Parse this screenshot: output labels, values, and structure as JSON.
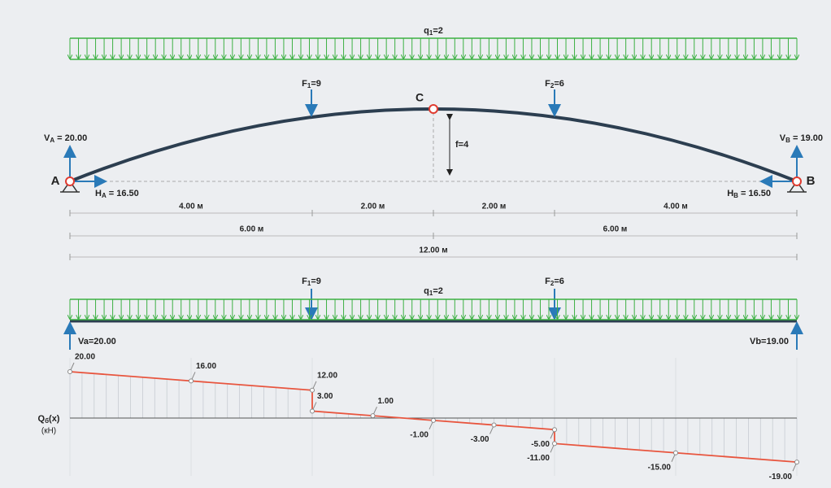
{
  "top_load": {
    "name": "q",
    "sub": "1",
    "text": "=2"
  },
  "arch": {
    "crown": "C",
    "rise": "f=4",
    "forces": [
      {
        "name": "F",
        "sub": "1",
        "text": "=9"
      },
      {
        "name": "F",
        "sub": "2",
        "text": "=6"
      }
    ],
    "supports": [
      "A",
      "B"
    ],
    "reactions": [
      {
        "name": "V",
        "sub": "A",
        "text": " = 20.00"
      },
      {
        "name": "H",
        "sub": "A",
        "text": " = 16.50"
      },
      {
        "name": "V",
        "sub": "B",
        "text": " = 19.00"
      },
      {
        "name": "H",
        "sub": "B",
        "text": " = 16.50"
      }
    ]
  },
  "dimensions": [
    [
      "4.00 м",
      "2.00 м",
      "2.00 м",
      "4.00 м"
    ],
    [
      "6.00 м",
      "6.00 м"
    ],
    [
      "12.00 м"
    ]
  ],
  "beam": {
    "forces": [
      {
        "name": "F",
        "sub": "1",
        "text": "=9"
      },
      {
        "name": "F",
        "sub": "2",
        "text": "=6"
      }
    ],
    "load": {
      "name": "q",
      "sub": "1",
      "text": "=2"
    },
    "reactions": [
      "Va=20.00",
      "Vb=19.00"
    ]
  },
  "shear": {
    "axis": {
      "name": "Q",
      "sub": "б",
      "text": "(x)"
    },
    "unit": "(кН)",
    "points": [
      {
        "x": 0,
        "value": 20,
        "label": "20.00"
      },
      {
        "x": 2,
        "value": 16,
        "label": "16.00"
      },
      {
        "x": 4,
        "value": 12,
        "label": "12.00"
      },
      {
        "x": 4,
        "value": 3,
        "label": "3.00"
      },
      {
        "x": 5,
        "value": 1,
        "label": "1.00"
      },
      {
        "x": 6,
        "value": -1,
        "label": "-1.00"
      },
      {
        "x": 7,
        "value": -3,
        "label": "-3.00"
      },
      {
        "x": 8,
        "value": -5,
        "label": "-5.00"
      },
      {
        "x": 8,
        "value": -11,
        "label": "-11.00"
      },
      {
        "x": 10,
        "value": -15,
        "label": "-15.00"
      },
      {
        "x": 12,
        "value": -19,
        "label": "-19.00"
      }
    ]
  }
}
